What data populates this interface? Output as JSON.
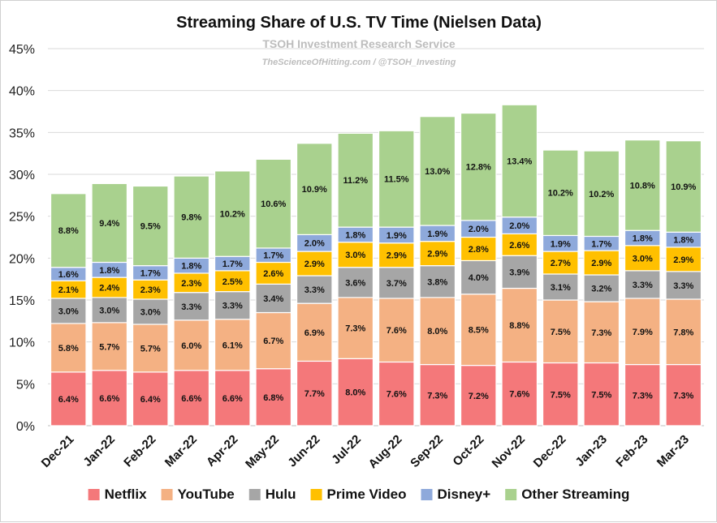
{
  "chart_data": {
    "type": "bar",
    "stacked": true,
    "title": "Streaming Share of U.S. TV Time (Nielsen Data)",
    "subtitle": "TSOH Investment Research Service",
    "subtitle2": "TheScienceOfHitting.com / @TSOH_Investing",
    "categories": [
      "Dec-21",
      "Jan-22",
      "Feb-22",
      "Mar-22",
      "Apr-22",
      "May-22",
      "Jun-22",
      "Jul-22",
      "Aug-22",
      "Sep-22",
      "Oct-22",
      "Nov-22",
      "Dec-22",
      "Jan-23",
      "Feb-23",
      "Mar-23"
    ],
    "series": [
      {
        "name": "Netflix",
        "color": "#f4787a",
        "values": [
          6.4,
          6.6,
          6.4,
          6.6,
          6.6,
          6.8,
          7.7,
          8.0,
          7.6,
          7.3,
          7.2,
          7.6,
          7.5,
          7.5,
          7.3,
          7.3
        ]
      },
      {
        "name": "YouTube",
        "color": "#f4b183",
        "values": [
          5.8,
          5.7,
          5.7,
          6.0,
          6.1,
          6.7,
          6.9,
          7.3,
          7.6,
          8.0,
          8.5,
          8.8,
          7.5,
          7.3,
          7.9,
          7.8
        ]
      },
      {
        "name": "Hulu",
        "color": "#a6a6a6",
        "values": [
          3.0,
          3.0,
          3.0,
          3.3,
          3.3,
          3.4,
          3.3,
          3.6,
          3.7,
          3.8,
          4.0,
          3.9,
          3.1,
          3.2,
          3.3,
          3.3
        ]
      },
      {
        "name": "Prime Video",
        "color": "#ffc000",
        "values": [
          2.1,
          2.4,
          2.3,
          2.3,
          2.5,
          2.6,
          2.9,
          3.0,
          2.9,
          2.9,
          2.8,
          2.6,
          2.7,
          2.9,
          3.0,
          2.9
        ]
      },
      {
        "name": "Disney+",
        "color": "#8ea9db",
        "values": [
          1.6,
          1.8,
          1.7,
          1.8,
          1.7,
          1.7,
          2.0,
          1.8,
          1.9,
          1.9,
          2.0,
          2.0,
          1.9,
          1.7,
          1.8,
          1.8
        ]
      },
      {
        "name": "Other Streaming",
        "color": "#a9d18e",
        "values": [
          8.8,
          9.4,
          9.5,
          9.8,
          10.2,
          10.6,
          10.9,
          11.2,
          11.5,
          13.0,
          12.8,
          13.4,
          10.2,
          10.2,
          10.8,
          10.9
        ]
      }
    ],
    "ylim": [
      0,
      45
    ],
    "yticks": [
      "0%",
      "5%",
      "10%",
      "15%",
      "20%",
      "25%",
      "30%",
      "35%",
      "40%",
      "45%"
    ],
    "data_label_suffix": "%",
    "grid": true,
    "legend_position": "bottom"
  }
}
